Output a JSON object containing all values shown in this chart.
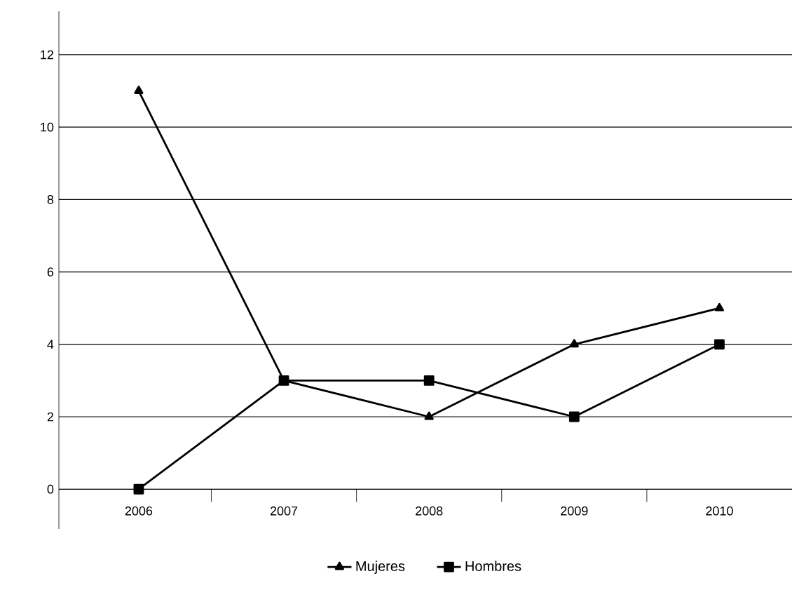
{
  "chart_data": {
    "type": "line",
    "categories": [
      "2006",
      "2007",
      "2008",
      "2009",
      "2010"
    ],
    "series": [
      {
        "name": "Mujeres",
        "color": "#000000",
        "values": [
          11,
          3,
          2,
          4,
          5
        ],
        "marker": "triangle"
      },
      {
        "name": "Hombres",
        "color": "#000000",
        "values": [
          0,
          3,
          3,
          2,
          4
        ],
        "marker": "square"
      }
    ],
    "ylim": [
      -1.1,
      13.2
    ],
    "yticks": [
      0,
      2,
      4,
      6,
      8,
      10,
      12
    ],
    "grid": "y",
    "legend": "bottom",
    "line_style": "solid"
  }
}
